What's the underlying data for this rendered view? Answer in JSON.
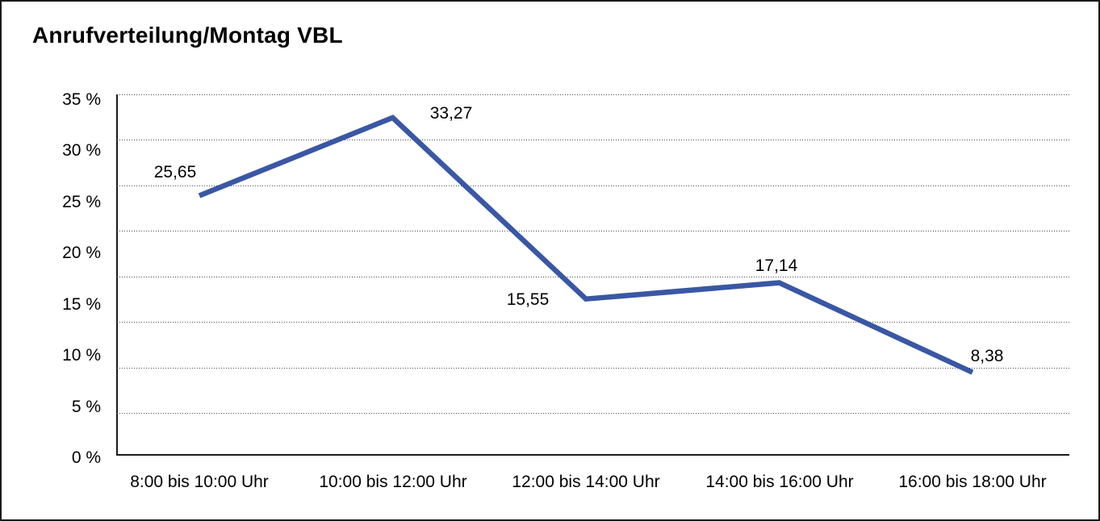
{
  "title": "Anrufverteilung/Montag VBL",
  "chart_data": {
    "type": "line",
    "title": "Anrufverteilung/Montag VBL",
    "categories": [
      "8:00 bis 10:00 Uhr",
      "10:00 bis 12:00 Uhr",
      "12:00 bis 14:00 Uhr",
      "14:00 bis 16:00 Uhr",
      "16:00 bis 18:00 Uhr"
    ],
    "values": [
      25.65,
      33.27,
      15.55,
      17.14,
      8.38
    ],
    "value_labels": [
      "25,65",
      "33,27",
      "15,55",
      "17,14",
      "8,38"
    ],
    "y_tick_labels": [
      "35 %",
      "30 %",
      "25 %",
      "20 %",
      "15 %",
      "10 %",
      "5 %",
      "0 %"
    ],
    "ylim": [
      0,
      35
    ],
    "xlabel": "",
    "ylabel": "",
    "grid": "horizontal-dotted",
    "legend": "none",
    "line_color": "#3A57A5",
    "axis_color": "#1A1A1A",
    "text_color": "#000000"
  }
}
